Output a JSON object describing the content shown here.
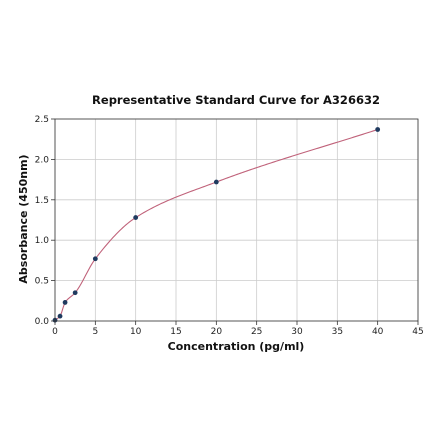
{
  "chart_data": {
    "type": "scatter",
    "title": "Representative Standard Curve for A326632",
    "xlabel": "Concentration (pg/ml)",
    "ylabel": "Absorbance (450nm)",
    "xlim": [
      0,
      45
    ],
    "ylim": [
      0,
      2.5
    ],
    "xticks": [
      0,
      5,
      10,
      15,
      20,
      25,
      30,
      35,
      40,
      45
    ],
    "xtick_labels": [
      "0",
      "5",
      "10",
      "15",
      "20",
      "25",
      "30",
      "35",
      "40",
      "45"
    ],
    "yticks": [
      0,
      0.5,
      1.0,
      1.5,
      2.0,
      2.5
    ],
    "ytick_labels": [
      "0.0",
      "0.5",
      "1.0",
      "1.5",
      "2.0",
      "2.5"
    ],
    "grid": true,
    "series": [
      {
        "x": [
          0,
          0.625,
          1.25,
          2.5,
          5,
          10,
          20,
          40
        ],
        "y": [
          0.01,
          0.06,
          0.23,
          0.35,
          0.77,
          1.28,
          1.72,
          2.37
        ],
        "marker_color": "#1f3a5f"
      }
    ],
    "fit_curve": {
      "color": "#c0627a",
      "x_range": [
        0,
        40
      ]
    }
  }
}
